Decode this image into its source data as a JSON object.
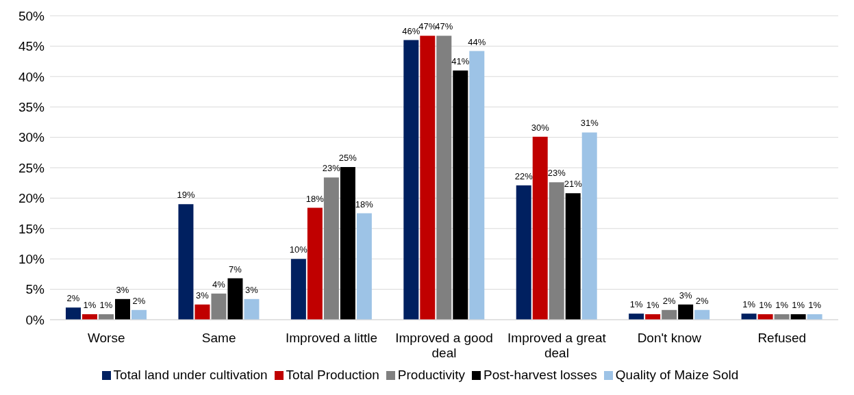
{
  "chart_data": {
    "type": "bar",
    "categories": [
      "Worse",
      "Same",
      "Improved a little",
      "Improved a good deal",
      "Improved a great deal",
      "Don't know",
      "Refused"
    ],
    "series": [
      {
        "name": "Total land under cultivation",
        "color": "#002060",
        "values": [
          2.0,
          19.0,
          10.0,
          46.0,
          22.1,
          1.0,
          1.0
        ],
        "value_labels": [
          "2%",
          "19%",
          "10%",
          "46%",
          "22%",
          "1%",
          "1%"
        ]
      },
      {
        "name": "Total Production",
        "color": "#c00000",
        "values": [
          0.9,
          2.5,
          18.4,
          46.7,
          30.1,
          0.9,
          0.9
        ],
        "value_labels": [
          "1%",
          "3%",
          "18%",
          "47%",
          "30%",
          "1%",
          "1%"
        ]
      },
      {
        "name": "Productivity",
        "color": "#808080",
        "values": [
          0.9,
          4.3,
          23.4,
          46.7,
          22.6,
          1.6,
          0.9
        ],
        "value_labels": [
          "1%",
          "4%",
          "23%",
          "47%",
          "23%",
          "2%",
          "1%"
        ]
      },
      {
        "name": "Post-harvest losses",
        "color": "#000000",
        "values": [
          3.4,
          6.8,
          25.1,
          41.0,
          20.8,
          2.5,
          0.9
        ],
        "value_labels": [
          "3%",
          "7%",
          "25%",
          "41%",
          "21%",
          "3%",
          "1%"
        ]
      },
      {
        "name": "Quality of Maize Sold",
        "color": "#9dc3e6",
        "values": [
          1.6,
          3.4,
          17.5,
          44.2,
          30.8,
          1.6,
          0.9
        ],
        "value_labels": [
          "2%",
          "3%",
          "18%",
          "44%",
          "31%",
          "2%",
          "1%"
        ]
      }
    ],
    "ylim": [
      0,
      50
    ],
    "yticks": [
      {
        "value": 0,
        "label": "0%"
      },
      {
        "value": 5,
        "label": "5%"
      },
      {
        "value": 10,
        "label": "10%"
      },
      {
        "value": 15,
        "label": "15%"
      },
      {
        "value": 20,
        "label": "20%"
      },
      {
        "value": 25,
        "label": "25%"
      },
      {
        "value": 30,
        "label": "30%"
      },
      {
        "value": 35,
        "label": "35%"
      },
      {
        "value": 40,
        "label": "40%"
      },
      {
        "value": 45,
        "label": "45%"
      },
      {
        "value": 50,
        "label": "50%"
      }
    ],
    "grid": "y",
    "legend": "bottom"
  }
}
